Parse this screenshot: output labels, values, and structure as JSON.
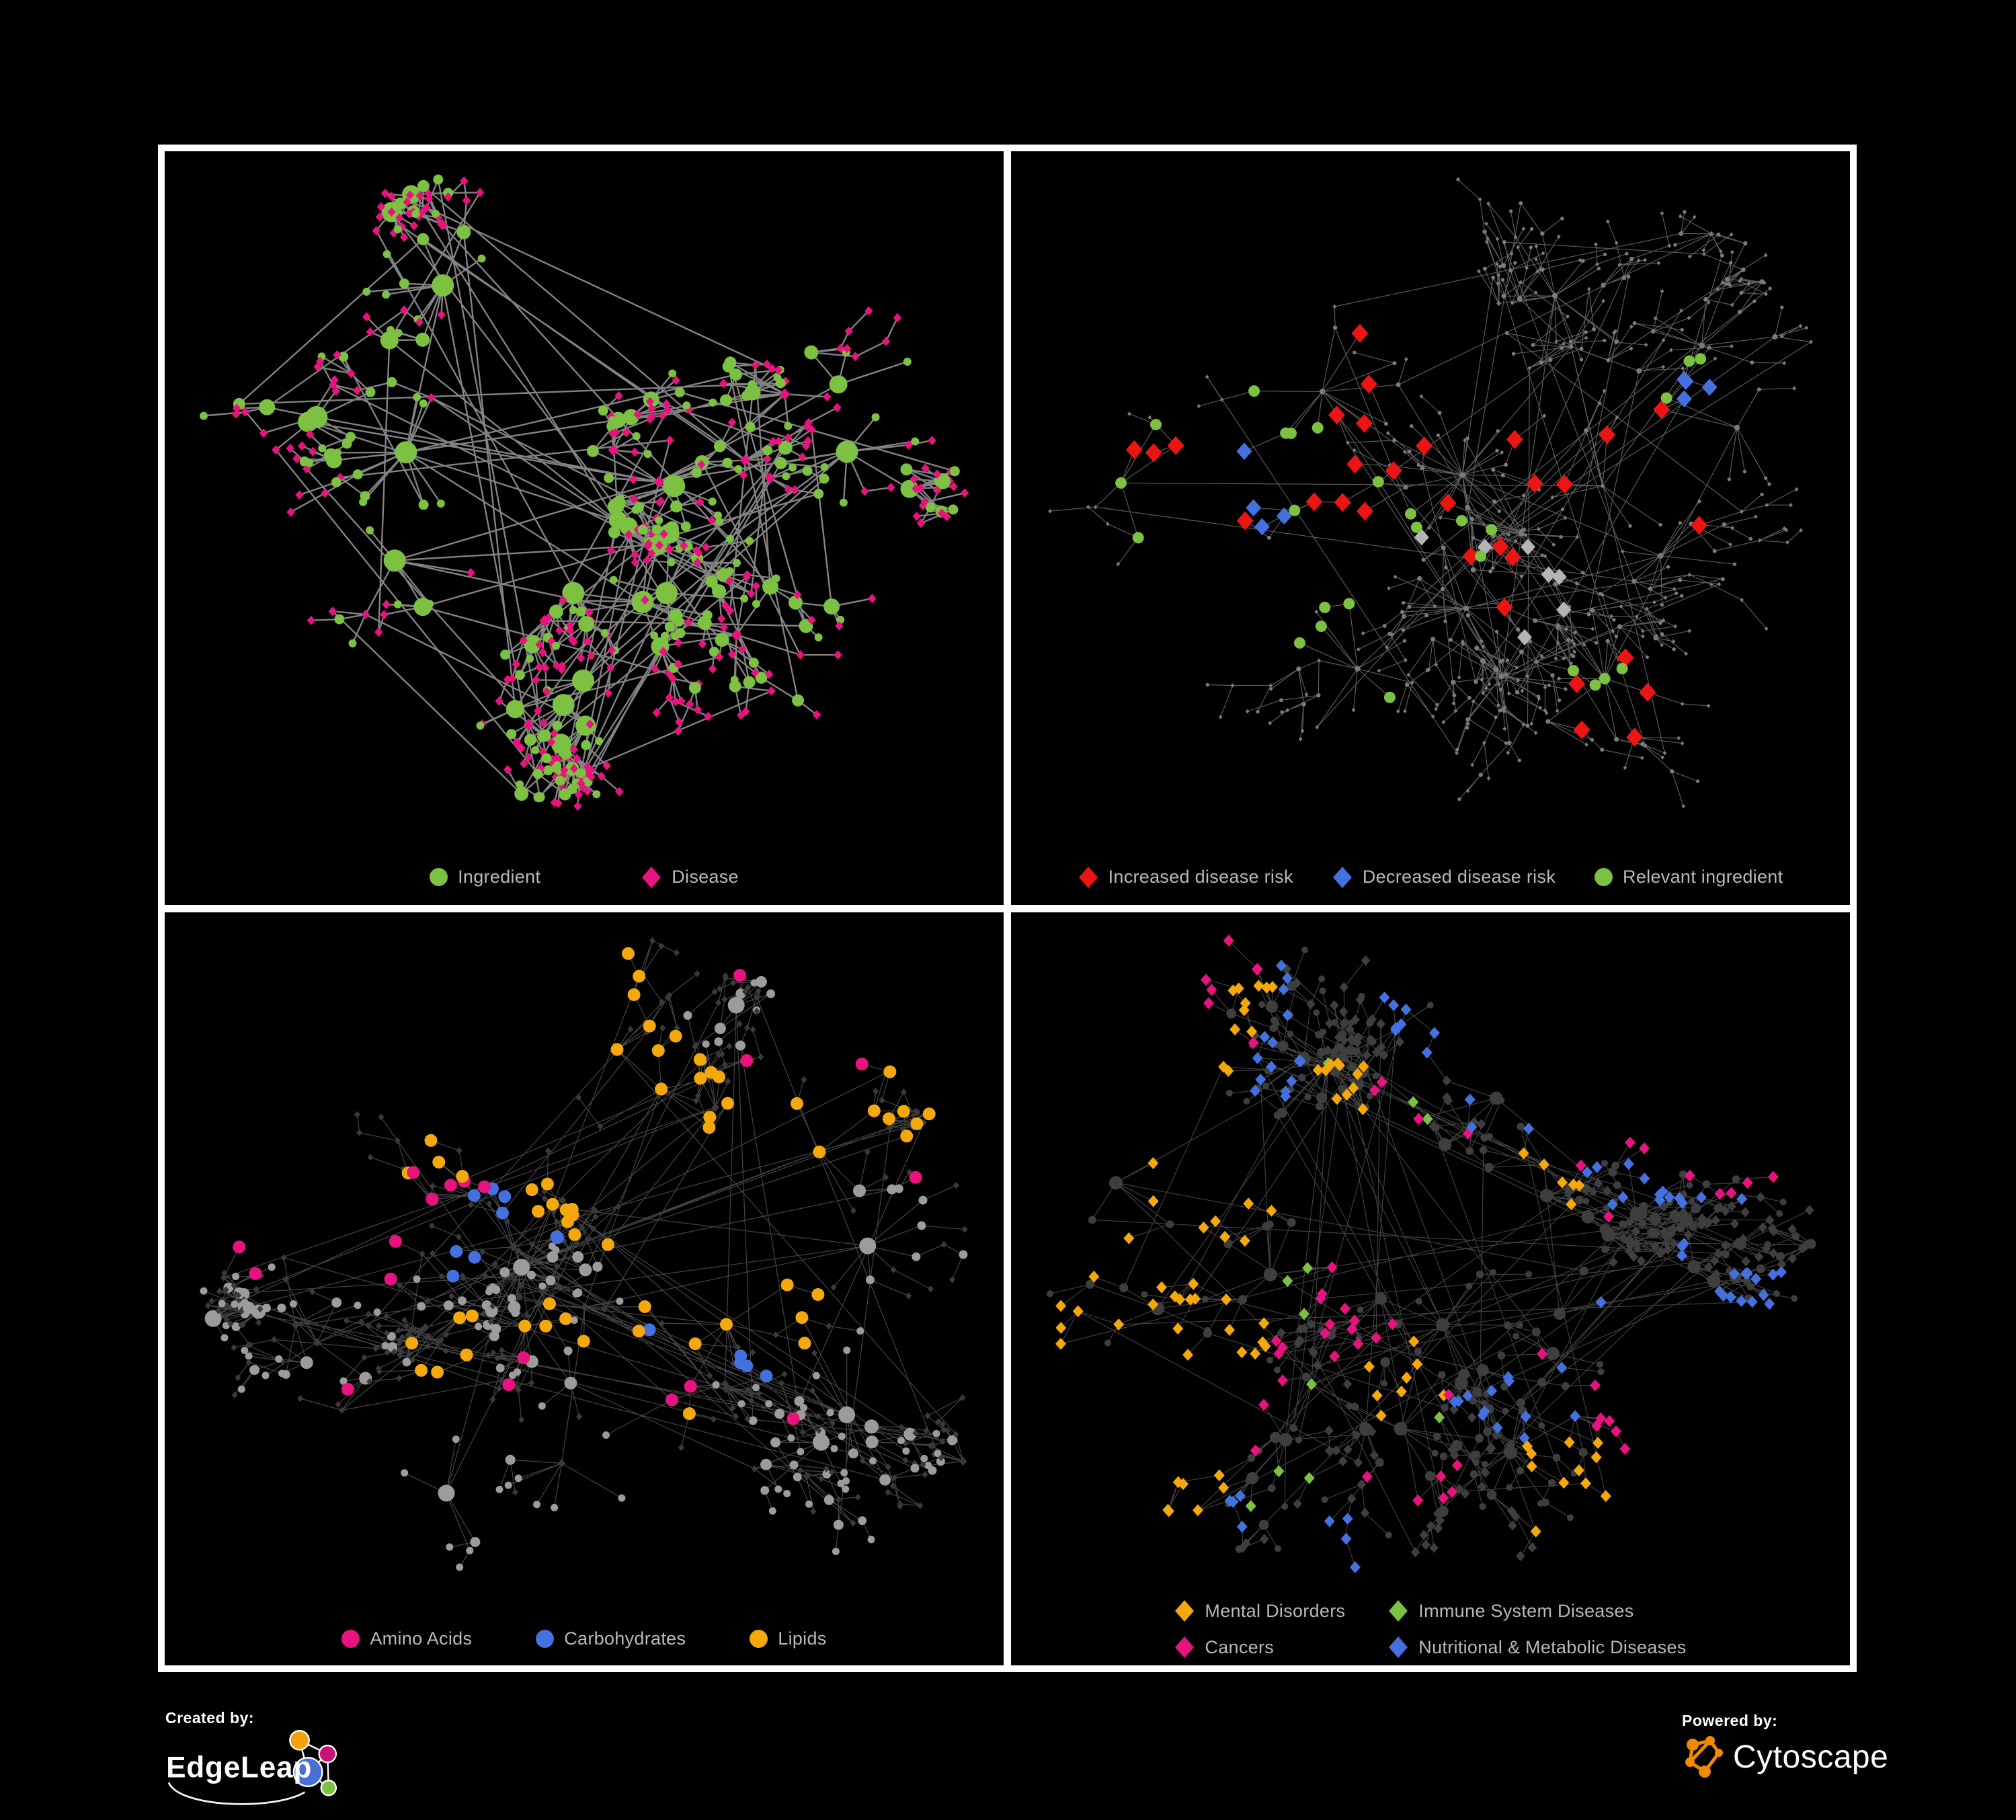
{
  "background": "#000000",
  "frame": {
    "fill": "#ffffff"
  },
  "panels": [
    {
      "name": "ingredient-disease",
      "legend": {
        "columns": 1,
        "items": [
          {
            "shape": "circle",
            "color": "#7cc142",
            "label": "Ingredient"
          },
          {
            "shape": "diamond",
            "color": "#e8137f",
            "label": "Disease"
          }
        ]
      },
      "net": {
        "seed": 7,
        "nodes": 520,
        "hubs": 15,
        "extra_edges": 70,
        "edge_color": "#8a8a8a",
        "edge_width": 2.4,
        "edge_opacity": 0.95,
        "circle_color": "#7cc142",
        "diamond_color": "#e8137f",
        "circle_r": [
          6,
          16.5
        ],
        "deg_scale": 1.5,
        "diamond_r": 6.2,
        "highlights": []
      }
    },
    {
      "name": "disease-risk",
      "legend": {
        "columns": 1,
        "items": [
          {
            "shape": "diamond",
            "color": "#ed1414",
            "label": "Increased disease risk"
          },
          {
            "shape": "diamond",
            "color": "#4470e0",
            "label": "Decreased disease risk"
          },
          {
            "shape": "circle",
            "color": "#7cc142",
            "label": "Relevant ingredient"
          }
        ]
      },
      "net": {
        "seed": 23,
        "nodes": 560,
        "hubs": 15,
        "extra_edges": 45,
        "edge_color": "#6f6f6f",
        "edge_width": 1.15,
        "edge_opacity": 0.85,
        "circle_color": "#7b7b7b",
        "diamond_color": "#7b7b7b",
        "circle_r": [
          2.7,
          4.2
        ],
        "deg_scale": 0.25,
        "diamond_r": 2.9,
        "highlights": [
          {
            "shape": "diamond",
            "color": "#ed1414",
            "size": 12.5,
            "count": 30,
            "regions": [
              [
                0.32,
                0.47,
                0.1
              ],
              [
                0.43,
                0.5,
                0.08
              ],
              [
                0.47,
                0.55,
                0.07
              ],
              [
                0.24,
                0.47,
                0.06
              ],
              [
                0.56,
                0.56,
                0.06
              ],
              [
                0.63,
                0.46,
                0.03
              ],
              [
                0.73,
                0.8,
                0.05
              ],
              [
                0.4,
                0.35,
                0.03
              ],
              [
                0.78,
                0.47,
                0.02
              ],
              [
                0.56,
                0.65,
                0.04
              ]
            ]
          },
          {
            "shape": "diamond",
            "color": "#4470e0",
            "size": 11.5,
            "count": 8,
            "regions": [
              [
                0.245,
                0.5,
                0.05
              ],
              [
                0.82,
                0.38,
                0.035
              ]
            ]
          },
          {
            "shape": "diamond",
            "color": "#b5b5b5",
            "size": 11,
            "count": 7,
            "regions": [
              [
                0.36,
                0.5,
                0.14
              ],
              [
                0.59,
                0.64,
                0.05
              ],
              [
                0.22,
                0.44,
                0.04
              ]
            ]
          },
          {
            "shape": "circle",
            "color": "#7cc142",
            "size": 8.5,
            "count": 26,
            "regions": [
              [
                0.33,
                0.47,
                0.13
              ],
              [
                0.44,
                0.5,
                0.1
              ],
              [
                0.25,
                0.4,
                0.06
              ],
              [
                0.57,
                0.6,
                0.05
              ],
              [
                0.71,
                0.79,
                0.04
              ],
              [
                0.79,
                0.39,
                0.02
              ],
              [
                0.5,
                0.85,
                0.02
              ],
              [
                0.15,
                0.53,
                0.03
              ],
              [
                0.36,
                0.65,
                0.04
              ]
            ]
          }
        ]
      }
    },
    {
      "name": "ingredient-classes",
      "legend": {
        "columns": 1,
        "items": [
          {
            "shape": "circle",
            "color": "#e8137f",
            "label": "Amino Acids"
          },
          {
            "shape": "circle",
            "color": "#4470e0",
            "label": "Carbohydrates"
          },
          {
            "shape": "circle",
            "color": "#f5a80b",
            "label": "Lipids"
          }
        ]
      },
      "net": {
        "seed": 39,
        "nodes": 560,
        "hubs": 16,
        "extra_edges": 55,
        "edge_color": "#9a9a9a",
        "edge_width": 1.2,
        "edge_opacity": 0.45,
        "circle_color": "#9c9c9c",
        "diamond_color": "#3a3a3a",
        "circle_r": [
          5.5,
          12.5
        ],
        "deg_scale": 1.0,
        "diamond_r": 4.6,
        "highlights": [
          {
            "shape": "circle",
            "color": "#f5a80b",
            "size": 9.5,
            "count": 58,
            "regions": [
              [
                0.5,
                0.42,
                0.055
              ],
              [
                0.42,
                0.22,
                0.09
              ],
              [
                0.45,
                0.1,
                0.05
              ],
              [
                0.63,
                0.6,
                0.05
              ],
              [
                0.49,
                0.6,
                0.06
              ],
              [
                0.3,
                0.66,
                0.05
              ],
              [
                0.72,
                0.55,
                0.03
              ],
              [
                0.86,
                0.32,
                0.02
              ],
              [
                0.59,
                0.85,
                0.03
              ],
              [
                0.55,
                0.33,
                0.06
              ],
              [
                0.25,
                0.08,
                0.02
              ],
              [
                0.65,
                0.38,
                0.03
              ]
            ]
          },
          {
            "shape": "circle",
            "color": "#e8137f",
            "size": 9.5,
            "count": 19,
            "regions": [
              [
                0.2,
                0.2,
                0.06
              ],
              [
                0.3,
                0.27,
                0.05
              ],
              [
                0.26,
                0.46,
                0.05
              ],
              [
                0.29,
                0.79,
                0.05
              ],
              [
                0.46,
                0.65,
                0.04
              ],
              [
                0.59,
                0.65,
                0.03
              ],
              [
                0.7,
                0.76,
                0.05
              ],
              [
                0.92,
                0.29,
                0.02
              ],
              [
                0.65,
                0.04,
                0.02
              ],
              [
                0.11,
                0.52,
                0.02
              ],
              [
                0.37,
                0.69,
                0.03
              ],
              [
                0.76,
                0.28,
                0.02
              ]
            ]
          },
          {
            "shape": "circle",
            "color": "#4470e0",
            "size": 9.5,
            "count": 14,
            "regions": [
              [
                0.49,
                0.43,
                0.05
              ],
              [
                0.42,
                0.31,
                0.03
              ],
              [
                0.29,
                0.07,
                0.02
              ],
              [
                0.06,
                0.27,
                0.02
              ],
              [
                0.68,
                0.6,
                0.02
              ],
              [
                0.37,
                0.5,
                0.02
              ]
            ]
          }
        ]
      }
    },
    {
      "name": "disease-classes",
      "legend": {
        "columns": 2,
        "items": [
          {
            "shape": "diamond",
            "color": "#f5a80b",
            "label": "Mental Disorders"
          },
          {
            "shape": "diamond",
            "color": "#7cc142",
            "label": "Immune System Diseases"
          },
          {
            "shape": "diamond",
            "color": "#e8137f",
            "label": "Cancers"
          },
          {
            "shape": "diamond",
            "color": "#4470e0",
            "label": "Nutritional & Metabolic Diseases"
          }
        ]
      },
      "net": {
        "seed": 54,
        "nodes": 620,
        "hubs": 16,
        "extra_edges": 60,
        "edge_color": "#6c6c6c",
        "edge_width": 1.15,
        "edge_opacity": 0.6,
        "circle_color": "#3e3e3e",
        "diamond_color": "#3e3e3e",
        "circle_r": [
          5,
          10
        ],
        "deg_scale": 0.8,
        "diamond_r": 6.8,
        "highlights": [
          {
            "shape": "diamond",
            "color": "#f5a80b",
            "size": 8,
            "count": 85,
            "regions": [
              [
                0.2,
                0.52,
                0.085
              ],
              [
                0.26,
                0.58,
                0.055
              ],
              [
                0.17,
                0.61,
                0.05
              ],
              [
                0.28,
                0.13,
                0.025
              ],
              [
                0.13,
                0.34,
                0.025
              ],
              [
                0.4,
                0.26,
                0.025
              ],
              [
                0.15,
                0.76,
                0.035
              ],
              [
                0.47,
                0.7,
                0.025
              ],
              [
                0.67,
                0.85,
                0.02
              ],
              [
                0.61,
                0.45,
                0.02
              ]
            ]
          },
          {
            "shape": "diamond",
            "color": "#e8137f",
            "size": 8,
            "count": 52,
            "regions": [
              [
                0.43,
                0.58,
                0.07
              ],
              [
                0.47,
                0.62,
                0.05
              ],
              [
                0.45,
                0.33,
                0.05
              ],
              [
                0.55,
                0.5,
                0.045
              ],
              [
                0.87,
                0.29,
                0.045
              ],
              [
                0.5,
                0.88,
                0.045
              ],
              [
                0.26,
                0.7,
                0.025
              ],
              [
                0.75,
                0.69,
                0.02
              ],
              [
                0.24,
                0.13,
                0.02
              ]
            ]
          },
          {
            "shape": "diamond",
            "color": "#4470e0",
            "size": 8,
            "count": 78,
            "regions": [
              [
                0.56,
                0.62,
                0.05
              ],
              [
                0.6,
                0.37,
                0.05
              ],
              [
                0.68,
                0.39,
                0.045
              ],
              [
                0.8,
                0.22,
                0.05
              ],
              [
                0.82,
                0.37,
                0.045
              ],
              [
                0.16,
                0.14,
                0.05
              ],
              [
                0.3,
                0.22,
                0.05
              ],
              [
                0.26,
                0.31,
                0.035
              ],
              [
                0.62,
                0.09,
                0.045
              ],
              [
                0.2,
                0.87,
                0.04
              ],
              [
                0.38,
                0.95,
                0.03
              ],
              [
                0.52,
                0.13,
                0.035
              ],
              [
                0.78,
                0.53,
                0.035
              ],
              [
                0.63,
                0.67,
                0.035
              ],
              [
                0.95,
                0.84,
                0.02
              ],
              [
                0.86,
                0.66,
                0.03
              ]
            ]
          },
          {
            "shape": "diamond",
            "color": "#7cc142",
            "size": 8,
            "count": 11,
            "regions": [
              [
                0.41,
                0.29,
                0.03
              ],
              [
                0.33,
                0.5,
                0.05
              ],
              [
                0.38,
                0.52,
                0.04
              ],
              [
                0.5,
                0.78,
                0.04
              ],
              [
                0.71,
                0.84,
                0.02
              ],
              [
                0.26,
                0.78,
                0.02
              ],
              [
                0.5,
                0.29,
                0.02
              ]
            ]
          }
        ]
      }
    }
  ],
  "footer": {
    "created_by": {
      "label": "Created by:",
      "brand": "EdgeLeap",
      "glyph_colors": {
        "blue": "#4a6fd6",
        "orange": "#f2a30b",
        "magenta": "#cb1277",
        "green": "#7cc142"
      }
    },
    "powered_by": {
      "label": "Powered by:",
      "brand": "Cytoscape",
      "accent": "#f08a00"
    }
  }
}
